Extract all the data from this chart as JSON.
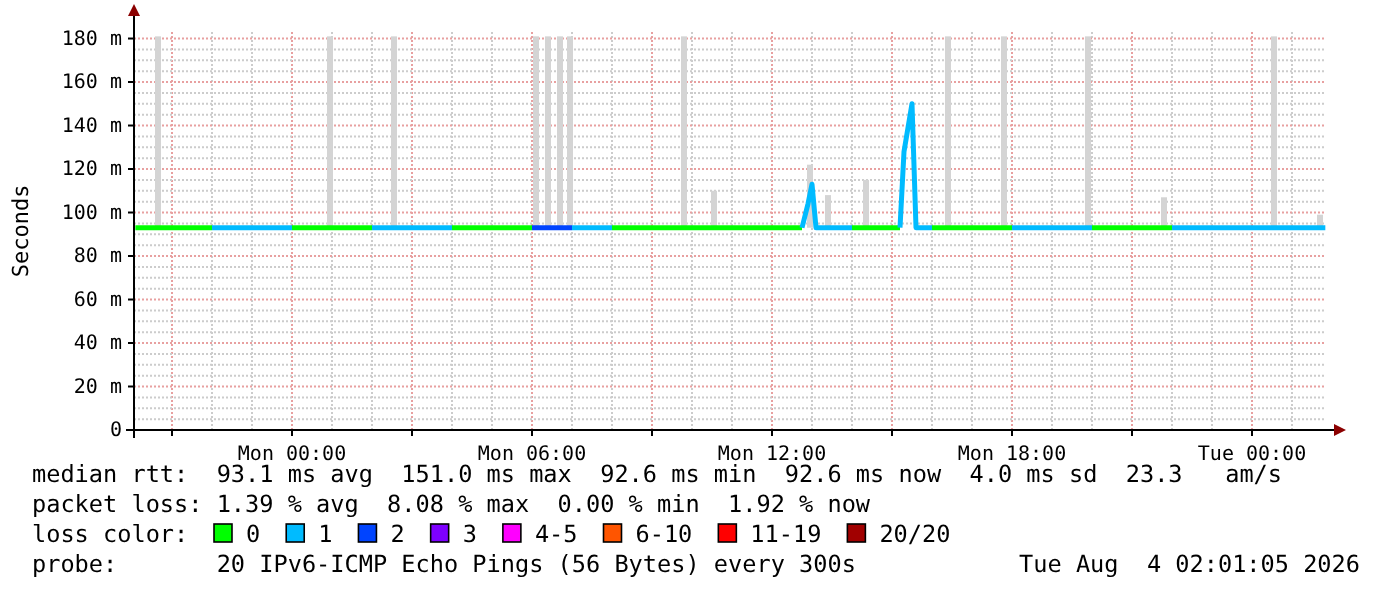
{
  "chart_data": {
    "type": "line",
    "ylabel": "Seconds",
    "legend_title": "loss color:",
    "legend": "bottom",
    "grid": true,
    "marker": "none",
    "line_style": "solid",
    "xlim": [
      "2026-08-02T20:03",
      "2026-08-04T01:51"
    ],
    "xticks": [
      {
        "value": "2026-08-02T21:00",
        "label": null
      },
      {
        "value": "2026-08-03T00:00",
        "label": "Mon 00:00"
      },
      {
        "value": "2026-08-03T03:00",
        "label": null
      },
      {
        "value": "2026-08-03T06:00",
        "label": "Mon 06:00"
      },
      {
        "value": "2026-08-03T09:00",
        "label": null
      },
      {
        "value": "2026-08-03T12:00",
        "label": "Mon 12:00"
      },
      {
        "value": "2026-08-03T15:00",
        "label": null
      },
      {
        "value": "2026-08-03T18:00",
        "label": "Mon 18:00"
      },
      {
        "value": "2026-08-03T21:00",
        "label": null
      },
      {
        "value": "2026-08-04T00:00",
        "label": "Tue 00:00"
      }
    ],
    "ylim": [
      0,
      183
    ],
    "yticks": [
      {
        "value": 0,
        "label": "0"
      },
      {
        "value": 20,
        "label": "20 m"
      },
      {
        "value": 40,
        "label": "40 m"
      },
      {
        "value": 60,
        "label": "60 m"
      },
      {
        "value": 80,
        "label": "80 m"
      },
      {
        "value": 100,
        "label": "100 m"
      },
      {
        "value": 120,
        "label": "120 m"
      },
      {
        "value": 140,
        "label": "140 m"
      },
      {
        "value": 160,
        "label": "160 m"
      },
      {
        "value": 180,
        "label": "180 m"
      }
    ],
    "x": [
      "2026-08-02T20:05",
      "2026-08-02T21:00",
      "2026-08-02T22:00",
      "2026-08-02T23:00",
      "2026-08-03T00:00",
      "2026-08-03T01:00",
      "2026-08-03T02:00",
      "2026-08-03T03:00",
      "2026-08-03T04:00",
      "2026-08-03T05:00",
      "2026-08-03T06:00",
      "2026-08-03T07:00",
      "2026-08-03T08:00",
      "2026-08-03T09:00",
      "2026-08-03T10:00",
      "2026-08-03T11:00",
      "2026-08-03T12:00",
      "2026-08-03T12:45",
      "2026-08-03T12:54",
      "2026-08-03T13:00",
      "2026-08-03T13:06",
      "2026-08-03T14:00",
      "2026-08-03T15:00",
      "2026-08-03T15:12",
      "2026-08-03T15:18",
      "2026-08-03T15:30",
      "2026-08-03T15:36",
      "2026-08-03T16:00",
      "2026-08-03T17:00",
      "2026-08-03T18:00",
      "2026-08-03T19:00",
      "2026-08-03T20:00",
      "2026-08-03T21:00",
      "2026-08-03T22:00",
      "2026-08-03T23:00",
      "2026-08-04T00:00",
      "2026-08-04T01:00",
      "2026-08-04T01:50"
    ],
    "series": [
      {
        "type": "bar",
        "color": "#d4d4d4",
        "x": [
          "2026-08-02T20:39",
          "2026-08-03T00:57",
          "2026-08-03T02:33",
          "2026-08-03T06:06",
          "2026-08-03T06:24",
          "2026-08-03T06:42",
          "2026-08-03T06:57",
          "2026-08-03T09:48",
          "2026-08-03T10:33",
          "2026-08-03T12:57",
          "2026-08-03T13:24",
          "2026-08-03T14:21",
          "2026-08-03T16:24",
          "2026-08-03T17:48",
          "2026-08-03T19:54",
          "2026-08-03T21:48",
          "2026-08-04T00:33",
          "2026-08-04T01:42"
        ],
        "base": [
          93,
          93,
          93,
          93,
          93,
          93,
          93,
          93,
          93,
          93,
          93,
          93,
          93,
          93,
          93,
          93,
          93,
          93
        ],
        "values": [
          88,
          88,
          88,
          88,
          88,
          88,
          88,
          88,
          17,
          29,
          15,
          22,
          88,
          88,
          88,
          14,
          88,
          6
        ]
      },
      {
        "name": "0",
        "color": "#00ff00",
        "values": [
          93,
          93,
          93,
          null,
          93,
          93,
          93,
          null,
          93,
          93,
          93,
          null,
          93,
          93,
          93,
          93,
          93,
          93,
          null,
          null,
          null,
          93,
          93,
          93,
          null,
          null,
          null,
          93,
          93,
          93,
          null,
          93,
          93,
          93,
          null,
          null,
          null,
          null
        ]
      },
      {
        "name": "1",
        "color": "#00bbff",
        "values": [
          null,
          null,
          93,
          93,
          93,
          null,
          93,
          93,
          93,
          null,
          null,
          93,
          93,
          null,
          null,
          null,
          null,
          93,
          104,
          113,
          93,
          93,
          null,
          93,
          128,
          150,
          93,
          93,
          null,
          93,
          93,
          93,
          null,
          93,
          93,
          93,
          93,
          93
        ]
      },
      {
        "name": "2",
        "color": "#0044ff",
        "values": [
          null,
          null,
          null,
          null,
          null,
          null,
          null,
          null,
          null,
          null,
          93,
          93,
          null,
          null,
          null,
          null,
          null,
          null,
          null,
          null,
          null,
          null,
          null,
          null,
          null,
          null,
          null,
          null,
          null,
          null,
          null,
          null,
          null,
          null,
          null,
          null,
          null,
          null
        ]
      },
      {
        "name": "3",
        "color": "#7e00ff",
        "values": [
          null,
          null,
          null,
          null,
          null,
          null,
          null,
          null,
          null,
          null,
          null,
          null,
          null,
          null,
          null,
          null,
          null,
          null,
          null,
          null,
          null,
          null,
          null,
          null,
          null,
          null,
          null,
          null,
          null,
          null,
          null,
          null,
          null,
          null,
          null,
          null,
          null,
          null
        ]
      },
      {
        "name": "4-5",
        "color": "#ff00ff",
        "values": [
          null,
          null,
          null,
          null,
          null,
          null,
          null,
          null,
          null,
          null,
          null,
          null,
          null,
          null,
          null,
          null,
          null,
          null,
          null,
          null,
          null,
          null,
          null,
          null,
          null,
          null,
          null,
          null,
          null,
          null,
          null,
          null,
          null,
          null,
          null,
          null,
          null,
          null
        ]
      },
      {
        "name": "6-10",
        "color": "#ff5500",
        "values": [
          null,
          null,
          null,
          null,
          null,
          null,
          null,
          null,
          null,
          null,
          null,
          null,
          null,
          null,
          null,
          null,
          null,
          null,
          null,
          null,
          null,
          null,
          null,
          null,
          null,
          null,
          null,
          null,
          null,
          null,
          null,
          null,
          null,
          null,
          null,
          null,
          null,
          null
        ]
      },
      {
        "name": "11-19",
        "color": "#ff0000",
        "values": [
          null,
          null,
          null,
          null,
          null,
          null,
          null,
          null,
          null,
          null,
          null,
          null,
          null,
          null,
          null,
          null,
          null,
          null,
          null,
          null,
          null,
          null,
          null,
          null,
          null,
          null,
          null,
          null,
          null,
          null,
          null,
          null,
          null,
          null,
          null,
          null,
          null,
          null
        ]
      },
      {
        "name": "20/20",
        "color": "#a10000",
        "values": [
          null,
          null,
          null,
          null,
          null,
          null,
          null,
          null,
          null,
          null,
          null,
          null,
          null,
          null,
          null,
          null,
          null,
          null,
          null,
          null,
          null,
          null,
          null,
          null,
          null,
          null,
          null,
          null,
          null,
          null,
          null,
          null,
          null,
          null,
          null,
          null,
          null,
          null
        ]
      }
    ],
    "annotations": [
      "median rtt:  93.1 ms avg  151.0 ms max  92.6 ms min  92.6 ms now  4.0 ms sd  23.3   am/s",
      "packet loss: 1.39 % avg  8.08 % max  0.00 % min  1.92 % now",
      "probe:       20 IPv6-ICMP Echo Pings (56 Bytes) every 300s",
      "Tue Aug  4 02:01:05 2026"
    ]
  }
}
